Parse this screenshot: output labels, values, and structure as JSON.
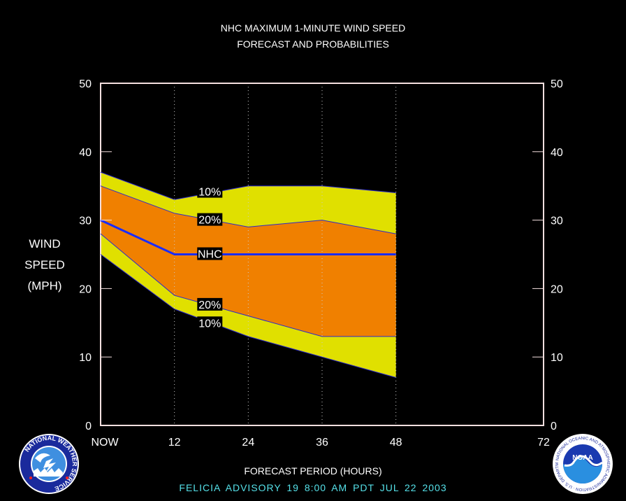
{
  "chart_data": {
    "type": "area",
    "title": "NHC MAXIMUM 1-MINUTE WIND SPEED",
    "subtitle": "FORECAST AND PROBABILITIES",
    "ylabel_lines": [
      "WIND",
      "SPEED",
      "(MPH)"
    ],
    "xlabel": "FORECAST PERIOD (HOURS)",
    "x_ticks": [
      0,
      12,
      24,
      36,
      48,
      72
    ],
    "x_tick_labels": [
      "NOW",
      "12",
      "24",
      "36",
      "48",
      "72"
    ],
    "y_ticks": [
      0,
      10,
      20,
      30,
      40,
      50
    ],
    "y_tick_labels": [
      "0",
      "10",
      "20",
      "30",
      "40",
      "50"
    ],
    "xlim": [
      0,
      72
    ],
    "ylim": [
      0,
      50
    ],
    "x": [
      0,
      12,
      24,
      36,
      48
    ],
    "series": [
      {
        "name": "10%",
        "band": "upper",
        "values": [
          37,
          33,
          35,
          35,
          34
        ]
      },
      {
        "name": "20%",
        "band": "upper",
        "values": [
          35,
          31,
          29,
          30,
          28
        ]
      },
      {
        "name": "NHC",
        "values": [
          30,
          25,
          25,
          25,
          25
        ]
      },
      {
        "name": "20%",
        "band": "lower",
        "values": [
          28,
          19,
          16,
          13,
          13
        ]
      },
      {
        "name": "10%",
        "band": "lower",
        "values": [
          25,
          17,
          13,
          10,
          7
        ]
      }
    ],
    "annotations": [
      {
        "text": "10%",
        "x": 16.5,
        "y": 34.2
      },
      {
        "text": "20%",
        "x": 16.5,
        "y": 30.1
      },
      {
        "text": "NHC",
        "x": 16.5,
        "y": 25.1
      },
      {
        "text": "20%",
        "x": 16.5,
        "y": 17.7
      },
      {
        "text": "10%",
        "x": 16.5,
        "y": 15.0
      }
    ],
    "colors": {
      "outer_band": "#e0e000",
      "inner_band": "#f08000",
      "nhc_line": "#1a2cff",
      "band_edge": "#2a2ad0",
      "frame": "#f5e0e0",
      "grid": "#cccccc"
    },
    "grid": "vertical-dotted"
  },
  "footer": {
    "advisory": "FELICIA   ADVISORY  19 8:00  AM  PDT  JUL 22  2003"
  },
  "logos": {
    "left": {
      "icon": "nws-logo-icon",
      "text": "NATIONAL WEATHER SERVICE"
    },
    "right": {
      "icon": "noaa-logo-icon",
      "text": "NOAA",
      "ring_text": "NATIONAL OCEANIC AND ATMOSPHERIC ADMINISTRATION · U.S. DEPARTMENT OF COMMERCE"
    }
  }
}
